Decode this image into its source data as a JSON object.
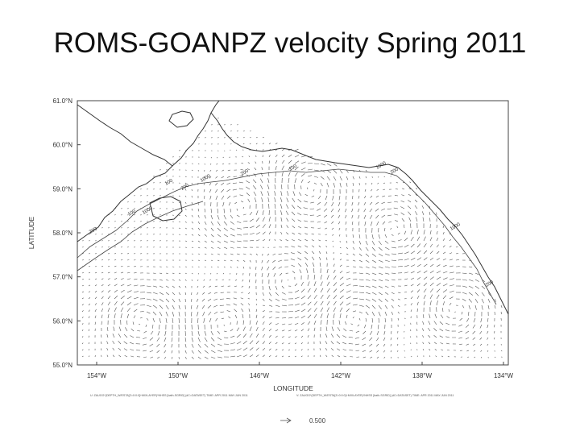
{
  "slide": {
    "title": "ROMS-GOANPZ velocity Spring 2011"
  },
  "map": {
    "lat_ticks": [
      "61.0°N",
      "60.0°N",
      "59.0°N",
      "58.0°N",
      "57.0°N",
      "56.0°N",
      "55.0°N"
    ],
    "lon_ticks": [
      "154°W",
      "150°W",
      "146°W",
      "142°W",
      "138°W",
      "134°W"
    ],
    "lat_axis_label": "LATITUDE",
    "lon_axis_label": "LONGITUDE",
    "footer_left": "U: ZAUGG*(DEPTH_W/ESTA[Z=0:0:0]+MIXLAYER)*NHSS [bath-SGRID] (dC=DATASET) TIME: APR 2011 MAY-JUN 2011",
    "footer_right": "V: ZAUGG*(DEPTH_W/ESTA[Z=0:0:0]+MIXLAYER)*NHSS [bath-SGRID] (dC=DATASET) TIME: APR 2011 MAY-JUN 2011",
    "scale_arrow_value": "0.500",
    "isobath_labels": [
      "200",
      "100",
      "1000",
      "200",
      "100",
      "1000",
      "200",
      "100",
      "1000",
      "200",
      "1000",
      "200"
    ],
    "colors": {
      "land_line": "#333333",
      "vector": "#555555",
      "frame": "#444444"
    }
  }
}
